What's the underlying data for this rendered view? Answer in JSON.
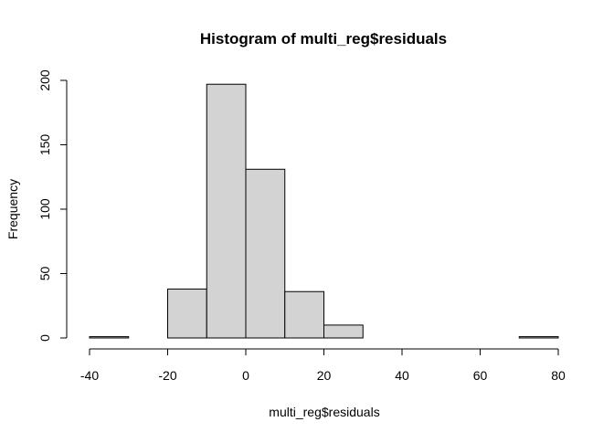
{
  "chart_data": {
    "type": "bar",
    "title": "Histogram of multi_reg$residuals",
    "xlabel": "multi_reg$residuals",
    "ylabel": "Frequency",
    "bin_edges": [
      -40,
      -30,
      -20,
      -10,
      0,
      10,
      20,
      30,
      40,
      50,
      60,
      70,
      80
    ],
    "values": [
      1,
      0,
      38,
      197,
      131,
      36,
      10,
      0,
      0,
      0,
      0,
      1
    ],
    "xlim": [
      -40,
      80
    ],
    "ylim": [
      0,
      200
    ],
    "x_ticks": [
      -40,
      -20,
      0,
      20,
      40,
      60,
      80
    ],
    "y_ticks": [
      0,
      50,
      100,
      150,
      200
    ],
    "bar_fill": "#d3d3d3",
    "bar_stroke": "#000000",
    "grid": false
  }
}
